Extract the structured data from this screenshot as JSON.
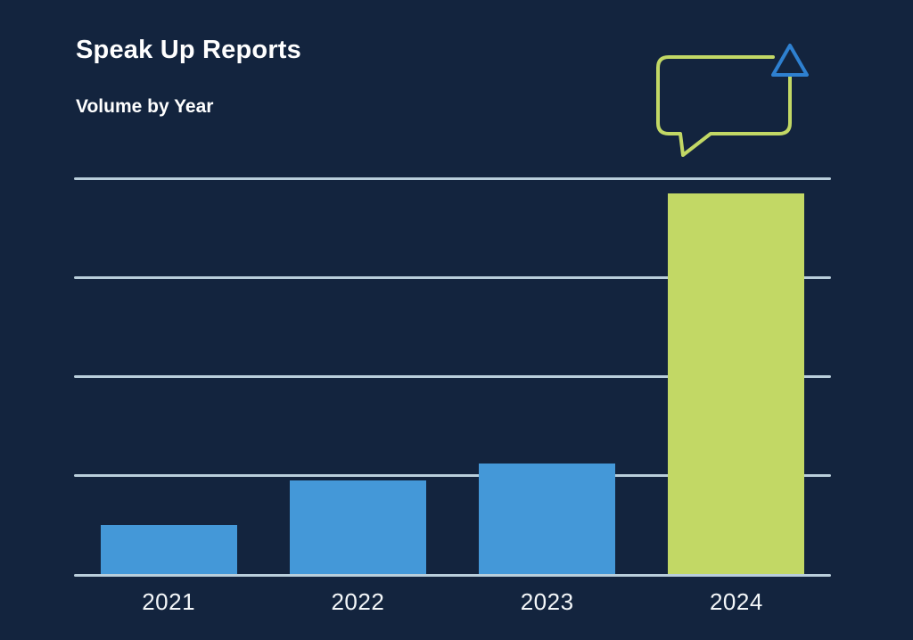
{
  "page": {
    "background_color": "#13243e"
  },
  "header": {
    "title": "Speak Up Reports",
    "subtitle": "Volume by Year"
  },
  "icon": {
    "name": "speech-bubble-up-arrow-icon",
    "bubble_color": "#c2d865",
    "arrow_color": "#2e80d0"
  },
  "chart_data": {
    "type": "bar",
    "title": "Speak Up Reports",
    "subtitle": "Volume by Year",
    "categories": [
      "2021",
      "2022",
      "2023",
      "2024"
    ],
    "values": [
      50,
      95,
      112,
      385
    ],
    "bar_colors": [
      "#4498d8",
      "#4498d8",
      "#4498d8",
      "#c2d865"
    ],
    "xlabel": "",
    "ylabel": "",
    "ylim": [
      0,
      400
    ],
    "gridline_step": 100,
    "grid": "horizontal",
    "y_axis_labels_visible": false,
    "legend": "none",
    "colors": {
      "grid_color": "#b9cedb",
      "label_color": "#f4f7f9"
    }
  }
}
